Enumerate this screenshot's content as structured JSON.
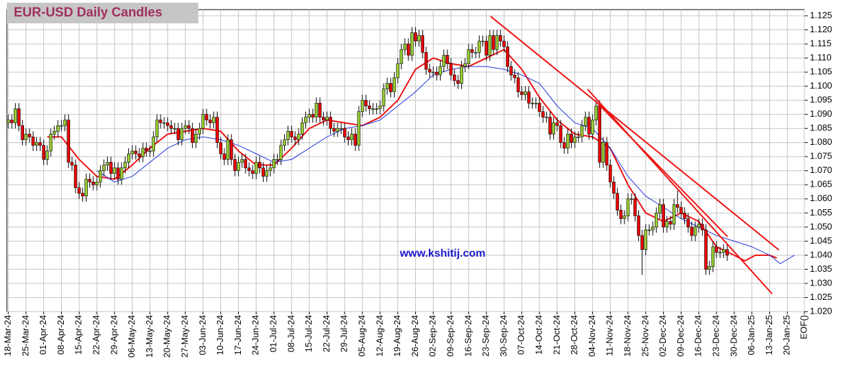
{
  "chart_data": {
    "type": "candlestick",
    "title": "EUR-USD Daily  Candles",
    "watermark": "www.kshitij.com",
    "up_color": "#99cc33",
    "down_color": "#ee0000",
    "grid": true,
    "ylim": [
      1.02,
      1.125
    ],
    "yticks": [
      {
        "value": 1.02,
        "label": "1.020"
      },
      1.025,
      {
        "value": 1.03,
        "label": "1.030"
      },
      1.035,
      {
        "value": 1.04,
        "label": "1.040"
      },
      1.045,
      {
        "value": 1.05,
        "label": "1.050"
      },
      1.055,
      {
        "value": 1.06,
        "label": "1.060"
      },
      1.065,
      {
        "value": 1.07,
        "label": "1.070"
      },
      1.075,
      {
        "value": 1.08,
        "label": "1.080"
      },
      1.085,
      {
        "value": 1.09,
        "label": "1.090"
      },
      1.095,
      {
        "value": 1.1,
        "label": "1.100"
      },
      1.105,
      {
        "value": 1.11,
        "label": "1.110"
      },
      1.115,
      {
        "value": 1.12,
        "label": "1.120"
      },
      1.125
    ],
    "xlim": [
      -0.4,
      224.8
    ],
    "xticks": [
      {
        "value": 0,
        "label": "18-Mar-24"
      },
      {
        "value": 5,
        "label": "25-Mar-24"
      },
      {
        "value": 10,
        "label": "01-Apr-24"
      },
      {
        "value": 15,
        "label": "08-Apr-24"
      },
      {
        "value": 20,
        "label": "15-Apr-24"
      },
      {
        "value": 25,
        "label": "22-Apr-24"
      },
      {
        "value": 30,
        "label": "29-Apr-24"
      },
      {
        "value": 35,
        "label": "06-May-24"
      },
      {
        "value": 40,
        "label": "13-May-24"
      },
      {
        "value": 45,
        "label": "20-May-24"
      },
      {
        "value": 50,
        "label": "27-May-24"
      },
      {
        "value": 55,
        "label": "03-Jun-24"
      },
      {
        "value": 60,
        "label": "10-Jun-24"
      },
      {
        "value": 65,
        "label": "17-Jun-24"
      },
      {
        "value": 70,
        "label": "24-Jun-24"
      },
      {
        "value": 75,
        "label": "01-Jul-24"
      },
      {
        "value": 80,
        "label": "08-Jul-24"
      },
      {
        "value": 85,
        "label": "15-Jul-24"
      },
      {
        "value": 90,
        "label": "22-Jul-24"
      },
      {
        "value": 95,
        "label": "29-Jul-24"
      },
      {
        "value": 100,
        "label": "05-Aug-24"
      },
      {
        "value": 105,
        "label": "12-Aug-24"
      },
      {
        "value": 110,
        "label": "19-Aug-24"
      },
      {
        "value": 115,
        "label": "26-Aug-24"
      },
      {
        "value": 120,
        "label": "02-Sep-24"
      },
      {
        "value": 125,
        "label": "09-Sep-24"
      },
      {
        "value": 130,
        "label": "16-Sep-24"
      },
      {
        "value": 135,
        "label": "23-Sep-24"
      },
      {
        "value": 140,
        "label": "30-Sep-24"
      },
      {
        "value": 145,
        "label": "07-Oct-24"
      },
      {
        "value": 150,
        "label": "14-Oct-24"
      },
      {
        "value": 155,
        "label": "21-Oct-24"
      },
      {
        "value": 160,
        "label": "28-Oct-24"
      },
      {
        "value": 165,
        "label": "04-Nov-24"
      },
      {
        "value": 170,
        "label": "11-Nov-24"
      },
      {
        "value": 175,
        "label": "18-Nov-24"
      },
      {
        "value": 180,
        "label": "25-Nov-24"
      },
      {
        "value": 185,
        "label": "02-Dec-24"
      },
      {
        "value": 190,
        "label": "09-Dec-24"
      },
      {
        "value": 195,
        "label": "16-Dec-24"
      },
      {
        "value": 200,
        "label": "23-Dec-24"
      },
      {
        "value": 205,
        "label": "30-Dec-24"
      },
      {
        "value": 210,
        "label": "06-Jan-25"
      },
      {
        "value": 215,
        "label": "13-Jan-25"
      },
      {
        "value": 220,
        "label": "20-Jan-25"
      },
      {
        "value": 224.8,
        "label": "EOF()"
      }
    ],
    "open": [
      1.087,
      1.088,
      1.087,
      1.092,
      1.086,
      1.081,
      1.083,
      1.082,
      1.079,
      1.08,
      1.079,
      1.074,
      1.077,
      1.083,
      1.084,
      1.086,
      1.086,
      1.088,
      1.073,
      1.072,
      1.064,
      1.062,
      1.061,
      1.067,
      1.066,
      1.065,
      1.066,
      1.07,
      1.072,
      1.073,
      1.069,
      1.071,
      1.067,
      1.071,
      1.073,
      1.076,
      1.077,
      1.076,
      1.075,
      1.078,
      1.077,
      1.077,
      1.082,
      1.088,
      1.087,
      1.087,
      1.086,
      1.085,
      1.085,
      1.081,
      1.085,
      1.086,
      1.085,
      1.08,
      1.083,
      1.085,
      1.09,
      1.088,
      1.087,
      1.089,
      1.08,
      1.076,
      1.074,
      1.081,
      1.074,
      1.07,
      1.073,
      1.074,
      1.071,
      1.07,
      1.069,
      1.073,
      1.071,
      1.068,
      1.07,
      1.071,
      1.074,
      1.074,
      1.079,
      1.081,
      1.084,
      1.082,
      1.081,
      1.083,
      1.087,
      1.089,
      1.09,
      1.089,
      1.094,
      1.089,
      1.088,
      1.089,
      1.085,
      1.084,
      1.085,
      1.085,
      1.082,
      1.081,
      1.083,
      1.079,
      1.091,
      1.095,
      1.093,
      1.092,
      1.092,
      1.092,
      1.093,
      1.099,
      1.101,
      1.098,
      1.103,
      1.108,
      1.113,
      1.115,
      1.111,
      1.119,
      1.116,
      1.118,
      1.112,
      1.106,
      1.105,
      1.105,
      1.104,
      1.107,
      1.111,
      1.108,
      1.104,
      1.102,
      1.101,
      1.107,
      1.108,
      1.113,
      1.112,
      1.112,
      1.116,
      1.116,
      1.111,
      1.118,
      1.113,
      1.118,
      1.116,
      1.114,
      1.107,
      1.104,
      1.103,
      1.098,
      1.097,
      1.098,
      1.094,
      1.094,
      1.094,
      1.091,
      1.089,
      1.089,
      1.083,
      1.087,
      1.086,
      1.08,
      1.078,
      1.083,
      1.08,
      1.082,
      1.082,
      1.086,
      1.089,
      1.083,
      1.088,
      1.093,
      1.073,
      1.08,
      1.072,
      1.066,
      1.062,
      1.056,
      1.053,
      1.054,
      1.06,
      1.06,
      1.054,
      1.047,
      1.042,
      1.049,
      1.049,
      1.05,
      1.055,
      1.058,
      1.05,
      1.052,
      1.051,
      1.058,
      1.057,
      1.055,
      1.053,
      1.05,
      1.047,
      1.05,
      1.051,
      1.049,
      1.035,
      1.036,
      1.043,
      1.041,
      1.041,
      1.042
    ],
    "high": [
      1.09,
      1.09,
      1.094,
      1.094,
      1.088,
      1.085,
      1.085,
      1.084,
      1.082,
      1.082,
      1.081,
      1.079,
      1.085,
      1.086,
      1.088,
      1.088,
      1.09,
      1.09,
      1.075,
      1.074,
      1.066,
      1.064,
      1.069,
      1.069,
      1.068,
      1.068,
      1.072,
      1.074,
      1.075,
      1.075,
      1.073,
      1.073,
      1.073,
      1.075,
      1.078,
      1.079,
      1.079,
      1.078,
      1.08,
      1.08,
      1.079,
      1.084,
      1.09,
      1.09,
      1.089,
      1.089,
      1.088,
      1.087,
      1.087,
      1.087,
      1.088,
      1.088,
      1.087,
      1.085,
      1.087,
      1.092,
      1.092,
      1.09,
      1.091,
      1.091,
      1.082,
      1.078,
      1.083,
      1.083,
      1.076,
      1.075,
      1.076,
      1.076,
      1.073,
      1.072,
      1.075,
      1.075,
      1.073,
      1.072,
      1.073,
      1.076,
      1.076,
      1.081,
      1.083,
      1.086,
      1.086,
      1.084,
      1.085,
      1.089,
      1.091,
      1.092,
      1.092,
      1.096,
      1.096,
      1.091,
      1.091,
      1.091,
      1.087,
      1.087,
      1.087,
      1.087,
      1.084,
      1.085,
      1.085,
      1.093,
      1.097,
      1.097,
      1.095,
      1.094,
      1.094,
      1.095,
      1.101,
      1.103,
      1.103,
      1.105,
      1.11,
      1.115,
      1.117,
      1.117,
      1.121,
      1.121,
      1.12,
      1.12,
      1.114,
      1.108,
      1.107,
      1.107,
      1.109,
      1.113,
      1.113,
      1.11,
      1.106,
      1.104,
      1.109,
      1.11,
      1.115,
      1.115,
      1.114,
      1.118,
      1.118,
      1.118,
      1.12,
      1.12,
      1.12,
      1.12,
      1.118,
      1.116,
      1.109,
      1.106,
      1.105,
      1.1,
      1.1,
      1.1,
      1.096,
      1.096,
      1.096,
      1.093,
      1.091,
      1.091,
      1.089,
      1.089,
      1.088,
      1.082,
      1.085,
      1.085,
      1.084,
      1.084,
      1.088,
      1.091,
      1.091,
      1.09,
      1.095,
      1.095,
      1.082,
      1.082,
      1.074,
      1.068,
      1.064,
      1.058,
      1.056,
      1.062,
      1.062,
      1.062,
      1.056,
      1.049,
      1.051,
      1.051,
      1.052,
      1.057,
      1.06,
      1.06,
      1.054,
      1.054,
      1.06,
      1.063,
      1.059,
      1.057,
      1.055,
      1.052,
      1.052,
      1.053,
      1.053,
      1.051,
      1.038,
      1.045,
      1.045,
      1.043,
      1.044,
      1.044
    ],
    "low": [
      1.085,
      1.085,
      1.085,
      1.084,
      1.079,
      1.079,
      1.08,
      1.077,
      1.077,
      1.077,
      1.072,
      1.072,
      1.075,
      1.081,
      1.082,
      1.084,
      1.084,
      1.071,
      1.07,
      1.062,
      1.06,
      1.059,
      1.059,
      1.064,
      1.063,
      1.063,
      1.064,
      1.068,
      1.07,
      1.067,
      1.067,
      1.065,
      1.065,
      1.069,
      1.071,
      1.074,
      1.074,
      1.073,
      1.073,
      1.075,
      1.075,
      1.075,
      1.08,
      1.085,
      1.085,
      1.084,
      1.083,
      1.083,
      1.079,
      1.079,
      1.083,
      1.083,
      1.078,
      1.078,
      1.081,
      1.083,
      1.086,
      1.085,
      1.085,
      1.078,
      1.074,
      1.072,
      1.072,
      1.072,
      1.068,
      1.068,
      1.071,
      1.069,
      1.068,
      1.067,
      1.067,
      1.069,
      1.066,
      1.066,
      1.068,
      1.069,
      1.072,
      1.072,
      1.077,
      1.079,
      1.08,
      1.079,
      1.079,
      1.081,
      1.085,
      1.087,
      1.087,
      1.087,
      1.087,
      1.086,
      1.086,
      1.083,
      1.082,
      1.082,
      1.083,
      1.08,
      1.079,
      1.079,
      1.077,
      1.077,
      1.089,
      1.091,
      1.09,
      1.09,
      1.09,
      1.09,
      1.091,
      1.097,
      1.096,
      1.096,
      1.101,
      1.106,
      1.111,
      1.109,
      1.109,
      1.114,
      1.114,
      1.11,
      1.104,
      1.103,
      1.103,
      1.102,
      1.102,
      1.105,
      1.106,
      1.102,
      1.1,
      1.099,
      1.099,
      1.105,
      1.106,
      1.11,
      1.11,
      1.11,
      1.114,
      1.109,
      1.109,
      1.111,
      1.111,
      1.114,
      1.112,
      1.105,
      1.102,
      1.101,
      1.096,
      1.095,
      1.095,
      1.092,
      1.092,
      1.092,
      1.089,
      1.087,
      1.087,
      1.081,
      1.081,
      1.084,
      1.078,
      1.076,
      1.076,
      1.078,
      1.078,
      1.08,
      1.08,
      1.084,
      1.081,
      1.081,
      1.086,
      1.071,
      1.071,
      1.07,
      1.064,
      1.06,
      1.054,
      1.051,
      1.051,
      1.052,
      1.058,
      1.052,
      1.045,
      1.033,
      1.04,
      1.047,
      1.047,
      1.048,
      1.053,
      1.048,
      1.048,
      1.049,
      1.049,
      1.055,
      1.053,
      1.051,
      1.048,
      1.045,
      1.045,
      1.048,
      1.047,
      1.033,
      1.033,
      1.034,
      1.039,
      1.039,
      1.039,
      1.038
    ],
    "close": [
      1.088,
      1.087,
      1.092,
      1.086,
      1.081,
      1.083,
      1.082,
      1.079,
      1.08,
      1.079,
      1.074,
      1.077,
      1.083,
      1.084,
      1.086,
      1.086,
      1.088,
      1.073,
      1.072,
      1.064,
      1.062,
      1.061,
      1.067,
      1.066,
      1.065,
      1.066,
      1.07,
      1.072,
      1.073,
      1.069,
      1.071,
      1.067,
      1.071,
      1.073,
      1.076,
      1.077,
      1.076,
      1.075,
      1.078,
      1.077,
      1.077,
      1.082,
      1.088,
      1.087,
      1.087,
      1.086,
      1.085,
      1.085,
      1.081,
      1.085,
      1.086,
      1.085,
      1.08,
      1.083,
      1.085,
      1.09,
      1.088,
      1.087,
      1.089,
      1.08,
      1.076,
      1.074,
      1.081,
      1.074,
      1.07,
      1.073,
      1.074,
      1.071,
      1.07,
      1.069,
      1.073,
      1.071,
      1.068,
      1.07,
      1.071,
      1.074,
      1.074,
      1.079,
      1.081,
      1.084,
      1.082,
      1.081,
      1.083,
      1.087,
      1.089,
      1.09,
      1.089,
      1.094,
      1.089,
      1.088,
      1.089,
      1.085,
      1.084,
      1.085,
      1.085,
      1.082,
      1.081,
      1.083,
      1.079,
      1.091,
      1.095,
      1.093,
      1.092,
      1.092,
      1.092,
      1.093,
      1.099,
      1.101,
      1.098,
      1.103,
      1.108,
      1.113,
      1.115,
      1.111,
      1.119,
      1.116,
      1.118,
      1.112,
      1.106,
      1.105,
      1.105,
      1.104,
      1.107,
      1.111,
      1.108,
      1.104,
      1.102,
      1.101,
      1.107,
      1.108,
      1.113,
      1.112,
      1.112,
      1.116,
      1.116,
      1.111,
      1.118,
      1.113,
      1.118,
      1.116,
      1.114,
      1.107,
      1.104,
      1.103,
      1.098,
      1.097,
      1.098,
      1.094,
      1.094,
      1.094,
      1.091,
      1.089,
      1.089,
      1.083,
      1.087,
      1.086,
      1.08,
      1.078,
      1.083,
      1.08,
      1.082,
      1.082,
      1.086,
      1.089,
      1.083,
      1.088,
      1.093,
      1.073,
      1.08,
      1.072,
      1.066,
      1.062,
      1.056,
      1.053,
      1.054,
      1.06,
      1.06,
      1.054,
      1.047,
      1.042,
      1.049,
      1.049,
      1.05,
      1.055,
      1.058,
      1.05,
      1.052,
      1.051,
      1.058,
      1.057,
      1.055,
      1.053,
      1.05,
      1.047,
      1.05,
      1.051,
      1.049,
      1.035,
      1.036,
      1.043,
      1.041,
      1.041,
      1.042,
      1.04
    ],
    "overlays": [
      {
        "color": "#ee1111",
        "x": [
          11,
          15,
          20,
          25,
          30,
          35,
          40,
          45,
          50,
          55,
          60,
          65,
          70,
          75,
          80,
          85,
          90,
          95,
          100,
          105,
          110,
          115,
          120,
          125,
          130,
          135,
          140,
          145,
          150,
          155,
          160,
          165,
          170,
          175,
          180,
          185,
          190,
          195,
          200,
          205,
          208,
          211,
          215,
          217
        ],
        "values": [
          1.082,
          1.082,
          1.074,
          1.068,
          1.067,
          1.072,
          1.078,
          1.083,
          1.084,
          1.085,
          1.084,
          1.077,
          1.072,
          1.072,
          1.078,
          1.085,
          1.088,
          1.087,
          1.086,
          1.089,
          1.095,
          1.106,
          1.11,
          1.108,
          1.107,
          1.11,
          1.113,
          1.106,
          1.096,
          1.088,
          1.083,
          1.082,
          1.078,
          1.065,
          1.055,
          1.052,
          1.055,
          1.052,
          1.043,
          1.04,
          1.038,
          1.04,
          1.04,
          1.039
        ]
      },
      {
        "color": "#2233dd",
        "x": [
          25,
          30,
          35,
          40,
          45,
          50,
          55,
          60,
          65,
          70,
          75,
          80,
          85,
          90,
          95,
          100,
          105,
          110,
          115,
          120,
          125,
          130,
          135,
          140,
          145,
          150,
          155,
          160,
          165,
          170,
          175,
          180,
          185,
          190,
          195,
          200,
          205,
          210,
          215,
          218,
          222
        ],
        "values": [
          1.07,
          1.066,
          1.068,
          1.073,
          1.078,
          1.081,
          1.082,
          1.081,
          1.079,
          1.076,
          1.073,
          1.074,
          1.078,
          1.082,
          1.085,
          1.086,
          1.088,
          1.093,
          1.098,
          1.104,
          1.106,
          1.107,
          1.107,
          1.106,
          1.104,
          1.101,
          1.093,
          1.087,
          1.085,
          1.078,
          1.068,
          1.061,
          1.057,
          1.053,
          1.05,
          1.047,
          1.045,
          1.043,
          1.04,
          1.037,
          1.04
        ]
      }
    ],
    "trendline_color": "#ee1111",
    "trendlines": [
      {
        "x": [
          136.2,
          217.6
        ],
        "y": [
          1.1248,
          1.0419
        ]
      },
      {
        "x": [
          163.6,
          215.7
        ],
        "y": [
          1.0989,
          1.0263
        ]
      },
      {
        "x": [
          166.3,
          203.1
        ],
        "y": [
          1.0941,
          1.0466
        ]
      }
    ]
  }
}
